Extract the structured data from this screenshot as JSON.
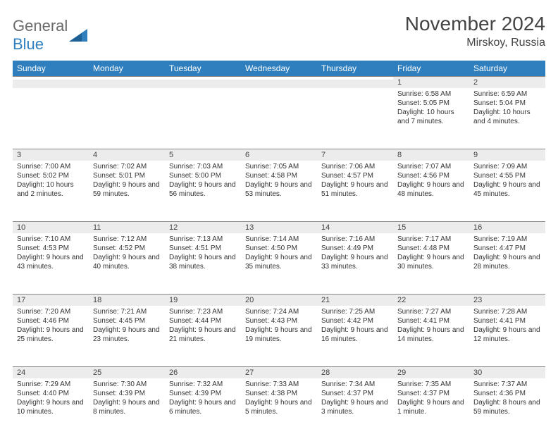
{
  "brand": {
    "line1": "General",
    "line2": "Blue"
  },
  "header": {
    "title": "November 2024",
    "location": "Mirskoy, Russia"
  },
  "colors": {
    "accent": "#2f7fbf",
    "row_band": "#ececec",
    "border": "#888888",
    "text": "#333333",
    "bg": "#ffffff"
  },
  "day_headers": [
    "Sunday",
    "Monday",
    "Tuesday",
    "Wednesday",
    "Thursday",
    "Friday",
    "Saturday"
  ],
  "weeks": [
    [
      null,
      null,
      null,
      null,
      null,
      {
        "n": "1",
        "sunrise": "6:58 AM",
        "sunset": "5:05 PM",
        "daylight": "10 hours and 7 minutes."
      },
      {
        "n": "2",
        "sunrise": "6:59 AM",
        "sunset": "5:04 PM",
        "daylight": "10 hours and 4 minutes."
      }
    ],
    [
      {
        "n": "3",
        "sunrise": "7:00 AM",
        "sunset": "5:02 PM",
        "daylight": "10 hours and 2 minutes."
      },
      {
        "n": "4",
        "sunrise": "7:02 AM",
        "sunset": "5:01 PM",
        "daylight": "9 hours and 59 minutes."
      },
      {
        "n": "5",
        "sunrise": "7:03 AM",
        "sunset": "5:00 PM",
        "daylight": "9 hours and 56 minutes."
      },
      {
        "n": "6",
        "sunrise": "7:05 AM",
        "sunset": "4:58 PM",
        "daylight": "9 hours and 53 minutes."
      },
      {
        "n": "7",
        "sunrise": "7:06 AM",
        "sunset": "4:57 PM",
        "daylight": "9 hours and 51 minutes."
      },
      {
        "n": "8",
        "sunrise": "7:07 AM",
        "sunset": "4:56 PM",
        "daylight": "9 hours and 48 minutes."
      },
      {
        "n": "9",
        "sunrise": "7:09 AM",
        "sunset": "4:55 PM",
        "daylight": "9 hours and 45 minutes."
      }
    ],
    [
      {
        "n": "10",
        "sunrise": "7:10 AM",
        "sunset": "4:53 PM",
        "daylight": "9 hours and 43 minutes."
      },
      {
        "n": "11",
        "sunrise": "7:12 AM",
        "sunset": "4:52 PM",
        "daylight": "9 hours and 40 minutes."
      },
      {
        "n": "12",
        "sunrise": "7:13 AM",
        "sunset": "4:51 PM",
        "daylight": "9 hours and 38 minutes."
      },
      {
        "n": "13",
        "sunrise": "7:14 AM",
        "sunset": "4:50 PM",
        "daylight": "9 hours and 35 minutes."
      },
      {
        "n": "14",
        "sunrise": "7:16 AM",
        "sunset": "4:49 PM",
        "daylight": "9 hours and 33 minutes."
      },
      {
        "n": "15",
        "sunrise": "7:17 AM",
        "sunset": "4:48 PM",
        "daylight": "9 hours and 30 minutes."
      },
      {
        "n": "16",
        "sunrise": "7:19 AM",
        "sunset": "4:47 PM",
        "daylight": "9 hours and 28 minutes."
      }
    ],
    [
      {
        "n": "17",
        "sunrise": "7:20 AM",
        "sunset": "4:46 PM",
        "daylight": "9 hours and 25 minutes."
      },
      {
        "n": "18",
        "sunrise": "7:21 AM",
        "sunset": "4:45 PM",
        "daylight": "9 hours and 23 minutes."
      },
      {
        "n": "19",
        "sunrise": "7:23 AM",
        "sunset": "4:44 PM",
        "daylight": "9 hours and 21 minutes."
      },
      {
        "n": "20",
        "sunrise": "7:24 AM",
        "sunset": "4:43 PM",
        "daylight": "9 hours and 19 minutes."
      },
      {
        "n": "21",
        "sunrise": "7:25 AM",
        "sunset": "4:42 PM",
        "daylight": "9 hours and 16 minutes."
      },
      {
        "n": "22",
        "sunrise": "7:27 AM",
        "sunset": "4:41 PM",
        "daylight": "9 hours and 14 minutes."
      },
      {
        "n": "23",
        "sunrise": "7:28 AM",
        "sunset": "4:41 PM",
        "daylight": "9 hours and 12 minutes."
      }
    ],
    [
      {
        "n": "24",
        "sunrise": "7:29 AM",
        "sunset": "4:40 PM",
        "daylight": "9 hours and 10 minutes."
      },
      {
        "n": "25",
        "sunrise": "7:30 AM",
        "sunset": "4:39 PM",
        "daylight": "9 hours and 8 minutes."
      },
      {
        "n": "26",
        "sunrise": "7:32 AM",
        "sunset": "4:39 PM",
        "daylight": "9 hours and 6 minutes."
      },
      {
        "n": "27",
        "sunrise": "7:33 AM",
        "sunset": "4:38 PM",
        "daylight": "9 hours and 5 minutes."
      },
      {
        "n": "28",
        "sunrise": "7:34 AM",
        "sunset": "4:37 PM",
        "daylight": "9 hours and 3 minutes."
      },
      {
        "n": "29",
        "sunrise": "7:35 AM",
        "sunset": "4:37 PM",
        "daylight": "9 hours and 1 minute."
      },
      {
        "n": "30",
        "sunrise": "7:37 AM",
        "sunset": "4:36 PM",
        "daylight": "8 hours and 59 minutes."
      }
    ]
  ],
  "labels": {
    "sunrise": "Sunrise: ",
    "sunset": "Sunset: ",
    "daylight": "Daylight: "
  }
}
